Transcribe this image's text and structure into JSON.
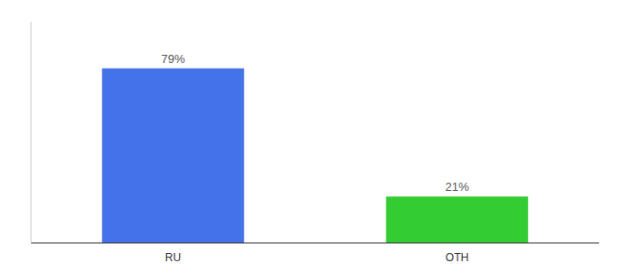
{
  "chart_data": {
    "type": "bar",
    "categories": [
      "RU",
      "OTH"
    ],
    "values": [
      79,
      21
    ],
    "value_labels": [
      "79%",
      "21%"
    ],
    "colors": [
      "#4472e8",
      "#33cc33"
    ],
    "ylim": [
      0,
      100
    ],
    "data_labels": true,
    "tick_labels": "x",
    "grid": false
  }
}
